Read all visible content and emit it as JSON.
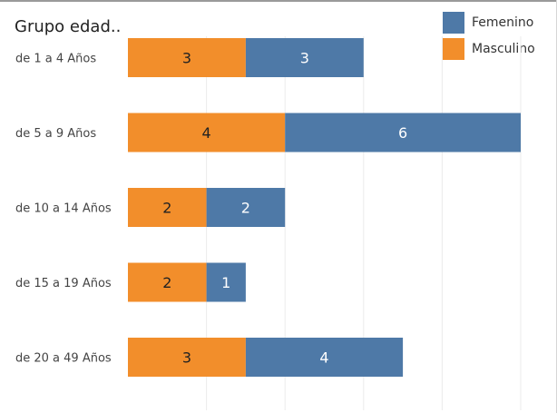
{
  "chart_data": {
    "type": "bar",
    "orientation": "horizontal",
    "stacked": true,
    "title": "Grupo edad..",
    "categories": [
      "de 1 a 4 Años",
      "de 5 a 9 Años",
      "de 10 a 14 Años",
      "de 15 a 19 Años",
      "de 20 a 49 Años"
    ],
    "series": [
      {
        "name": "Masculino",
        "color": "#f28e2b",
        "values": [
          3,
          4,
          2,
          2,
          3
        ]
      },
      {
        "name": "Femenino",
        "color": "#4e79a7",
        "values": [
          3,
          6,
          2,
          1,
          4
        ]
      }
    ],
    "legend_order": [
      "Femenino",
      "Masculino"
    ],
    "legend_position": "top-right",
    "xlim": [
      0,
      10
    ],
    "grid": true,
    "data_labels": true
  }
}
